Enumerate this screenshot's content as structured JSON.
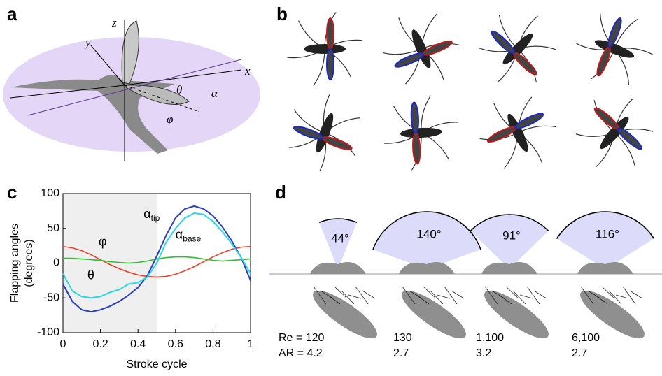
{
  "panels": {
    "a": "a",
    "b": "b",
    "c": "c",
    "d": "d"
  },
  "panel_a": {
    "axis_labels": [
      "z",
      "y",
      "x"
    ],
    "angle_labels": [
      "θ",
      "α",
      "φ"
    ]
  },
  "chart_data": {
    "type": "line",
    "xlabel": "Stroke cycle",
    "ylabel": [
      "Flapping angles",
      "(degrees)"
    ],
    "x": [
      0,
      0.05,
      0.1,
      0.15,
      0.2,
      0.25,
      0.3,
      0.35,
      0.4,
      0.45,
      0.5,
      0.55,
      0.6,
      0.65,
      0.7,
      0.75,
      0.8,
      0.85,
      0.9,
      0.95,
      1
    ],
    "series": [
      {
        "name": "φ",
        "color": "#e8402a",
        "values": [
          24,
          22,
          18,
          12,
          5,
          -2,
          -8,
          -13,
          -17,
          -19,
          -20,
          -19,
          -16,
          -11,
          -5,
          2,
          9,
          15,
          20,
          23,
          24
        ]
      },
      {
        "name": "θ",
        "color": "#2ec02e",
        "values": [
          7,
          7,
          6,
          5,
          4,
          2,
          1,
          0,
          1,
          3,
          6,
          8,
          9,
          9,
          8,
          6,
          4,
          3,
          4,
          5,
          6
        ]
      },
      {
        "name": "α",
        "sub": "tip",
        "color": "#2a3fc0",
        "values": [
          -30,
          -55,
          -67,
          -70,
          -67,
          -62,
          -55,
          -46,
          -35,
          -18,
          10,
          40,
          65,
          78,
          82,
          78,
          68,
          52,
          32,
          8,
          -25
        ]
      },
      {
        "name": "α",
        "sub": "base",
        "color": "#2ad8e0",
        "values": [
          -15,
          -40,
          -48,
          -50,
          -48,
          -42,
          -38,
          -30,
          -28,
          -20,
          0,
          30,
          50,
          65,
          72,
          70,
          60,
          45,
          28,
          8,
          -15
        ]
      }
    ],
    "label_at": [
      [
        0.19,
        30
      ],
      [
        0.13,
        -18
      ],
      [
        0.43,
        70
      ],
      [
        0.6,
        40
      ]
    ],
    "shaded_region": [
      0,
      0.5
    ],
    "xlim": [
      0,
      1
    ],
    "xticks": [
      0,
      0.2,
      0.4,
      0.6,
      0.8,
      1
    ],
    "ylim": [
      -100,
      100
    ],
    "yticks": [
      -100,
      -50,
      0,
      50,
      100
    ]
  },
  "panel_d": {
    "sweeps": {
      "values": [
        44,
        140,
        91,
        116
      ],
      "value_labels": [
        "44°",
        "140°",
        "91°",
        "116°"
      ]
    },
    "re": [
      "Re = 120",
      "130",
      "1,100",
      "6,100"
    ],
    "ar": [
      "AR = 4.2",
      "2.7",
      "3.2",
      "2.7"
    ]
  }
}
